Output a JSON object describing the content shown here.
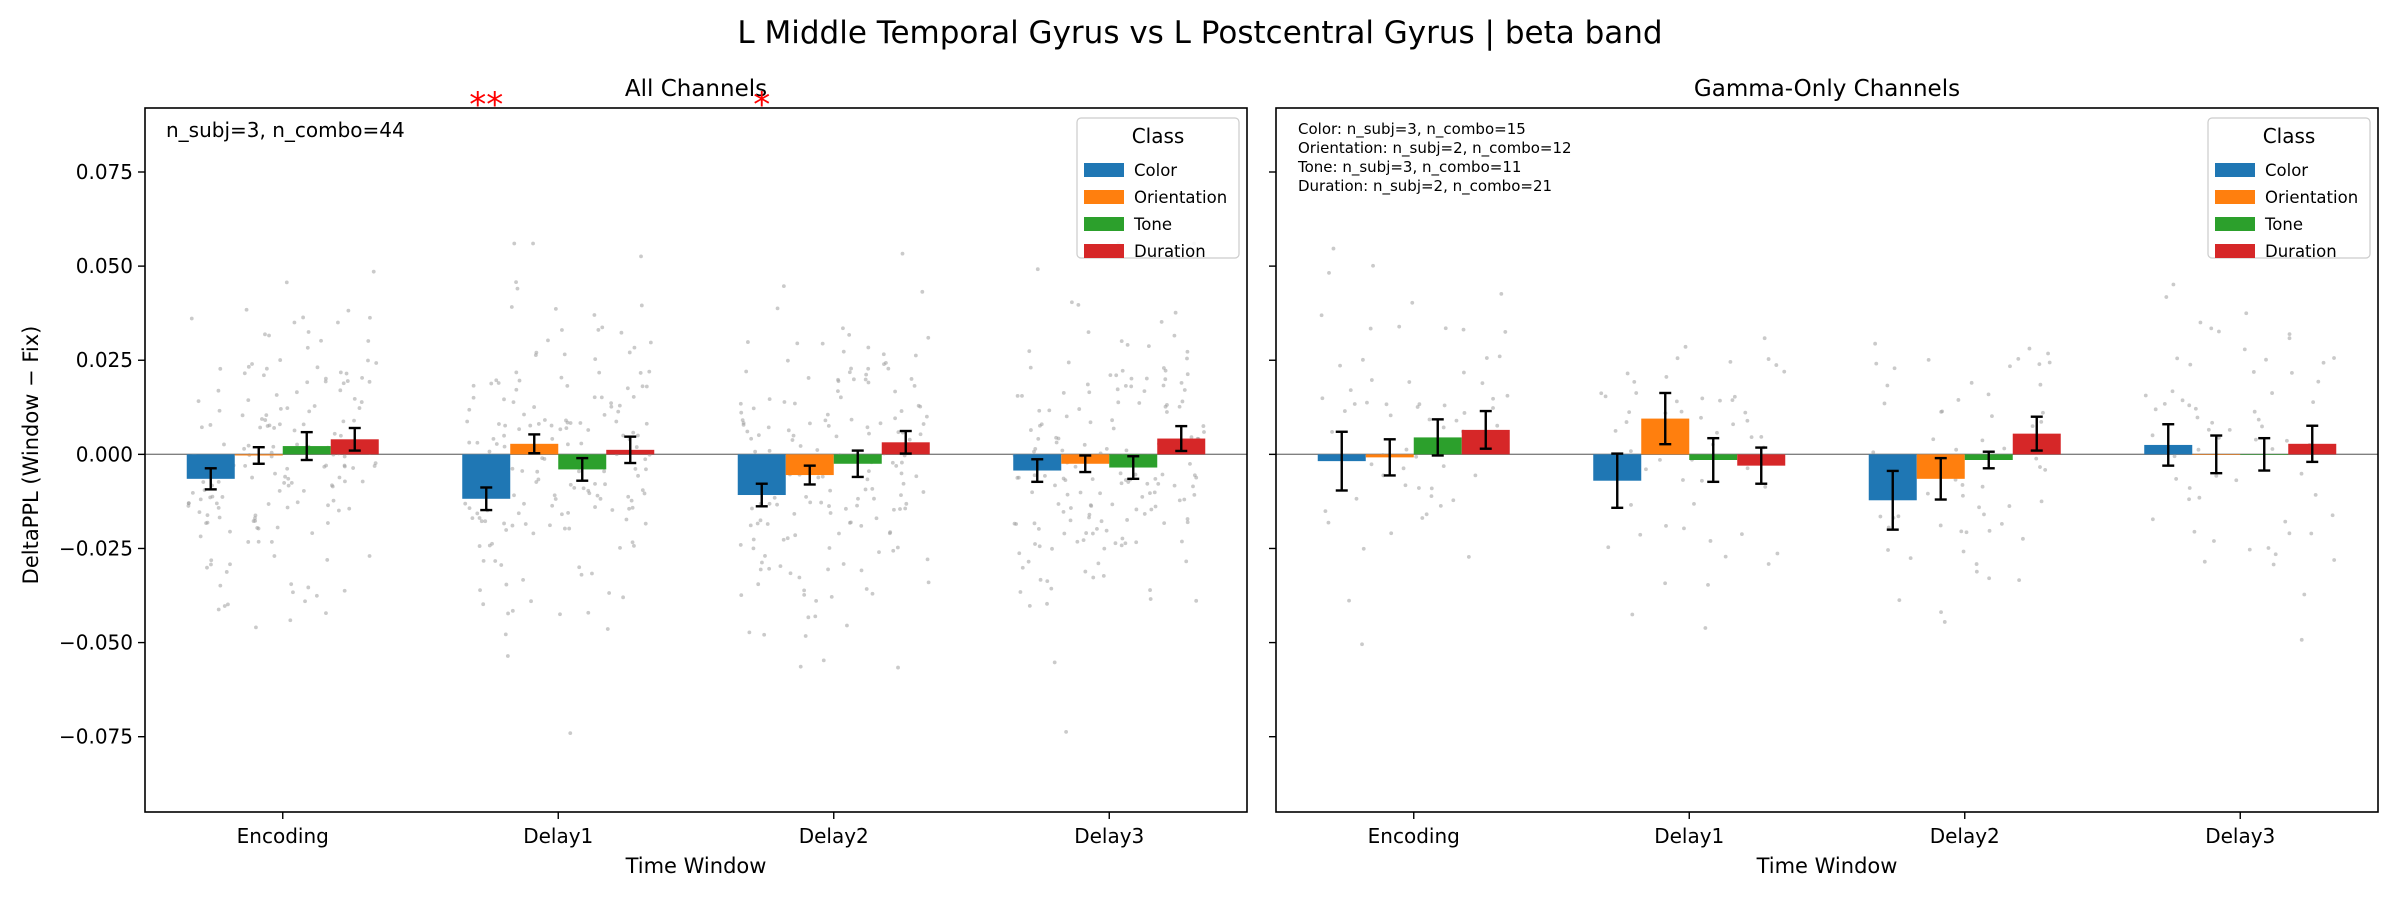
{
  "figure": {
    "title": "L Middle Temporal Gyrus vs L Postcentral Gyrus  |  beta band",
    "ylabel": "DeltaPPL (Window − Fix)",
    "xlabel": "Time Window"
  },
  "legend": {
    "title": "Class",
    "placement": "upper right",
    "entries": [
      {
        "label": "Color",
        "color": "#1f77b4"
      },
      {
        "label": "Orientation",
        "color": "#ff7f0e"
      },
      {
        "label": "Tone",
        "color": "#2ca02c"
      },
      {
        "label": "Duration",
        "color": "#d62728"
      }
    ]
  },
  "chart_data": [
    {
      "type": "bar",
      "title": "All Channels",
      "xlabel": "Time Window",
      "ylabel": "DeltaPPL (Window − Fix)",
      "ylim": [
        -0.095,
        0.092
      ],
      "yticks": [
        "−0.075",
        "−0.050",
        "−0.025",
        "0.000",
        "0.025",
        "0.050",
        "0.075"
      ],
      "ytick_values": [
        -0.075,
        -0.05,
        -0.025,
        0,
        0.025,
        0.05,
        0.075
      ],
      "categories": [
        "Encoding",
        "Delay1",
        "Delay2",
        "Delay3"
      ],
      "annotation": "n_subj=3, n_combo=44",
      "significance": [
        {
          "category": "Delay1",
          "series": "Color",
          "marker": "**"
        },
        {
          "category": "Delay2",
          "series": "Color",
          "marker": "*"
        }
      ],
      "series": [
        {
          "name": "Color",
          "values": [
            -0.0065,
            -0.0118,
            -0.0108,
            -0.0043
          ],
          "err": [
            0.0028,
            0.003,
            0.003,
            0.003
          ]
        },
        {
          "name": "Orientation",
          "values": [
            -0.0003,
            0.0028,
            -0.0055,
            -0.0025
          ],
          "err": [
            0.0022,
            0.0025,
            0.0025,
            0.0022
          ]
        },
        {
          "name": "Tone",
          "values": [
            0.0022,
            -0.004,
            -0.0025,
            -0.0035
          ],
          "err": [
            0.0037,
            0.003,
            0.0035,
            0.003
          ]
        },
        {
          "name": "Duration",
          "values": [
            0.004,
            0.0012,
            0.0032,
            0.0042
          ],
          "err": [
            0.003,
            0.0035,
            0.003,
            0.0033
          ]
        }
      ]
    },
    {
      "type": "bar",
      "title": "Gamma-Only Channels",
      "xlabel": "Time Window",
      "ylim": [
        -0.095,
        0.092
      ],
      "categories": [
        "Encoding",
        "Delay1",
        "Delay2",
        "Delay3"
      ],
      "annotation_lines": [
        "Color: n_subj=3, n_combo=15",
        "Orientation: n_subj=2, n_combo=12",
        "Tone: n_subj=3, n_combo=11",
        "Duration: n_subj=2, n_combo=21"
      ],
      "series": [
        {
          "name": "Color",
          "values": [
            -0.0018,
            -0.007,
            -0.0122,
            0.0025
          ],
          "err": [
            0.0078,
            0.0072,
            0.0078,
            0.0055
          ]
        },
        {
          "name": "Orientation",
          "values": [
            -0.0008,
            0.0095,
            -0.0065,
            0.0
          ],
          "err": [
            0.0048,
            0.0068,
            0.0055,
            0.005
          ]
        },
        {
          "name": "Tone",
          "values": [
            0.0045,
            -0.0015,
            -0.0015,
            0.0
          ],
          "err": [
            0.0048,
            0.0058,
            0.0022,
            0.0043
          ]
        },
        {
          "name": "Duration",
          "values": [
            0.0065,
            -0.003,
            0.0055,
            0.0028
          ],
          "err": [
            0.005,
            0.0048,
            0.0045,
            0.0048
          ]
        }
      ]
    }
  ]
}
